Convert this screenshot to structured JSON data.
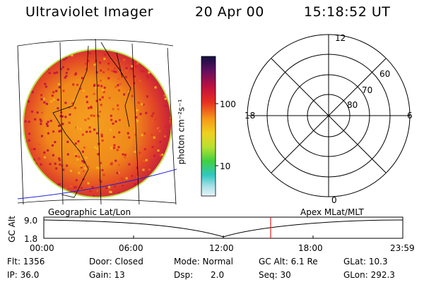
{
  "header": {
    "instrument": "Ultraviolet Imager",
    "date": "20 Apr 00",
    "time": "15:18:52 UT"
  },
  "colorbar": {
    "label": "photon cm⁻²s⁻¹",
    "ticks": [
      "100",
      "10"
    ]
  },
  "polar_plot": {
    "mlt_labels": [
      "12",
      "18",
      "6",
      "0"
    ],
    "lat_labels": [
      "60",
      "70",
      "80"
    ]
  },
  "orbit_panel": {
    "ylabel": "GC Alt",
    "left_title": "Geographic Lat/Lon",
    "right_title": "Apex MLat/MLT",
    "yticks": [
      "9.0",
      "1.8"
    ],
    "xticks": [
      "00:00",
      "06:00",
      "12:00",
      "18:00",
      "23:59"
    ]
  },
  "info": {
    "flt": "Flt: 1356",
    "door": "Door: Closed",
    "mode": "Mode: Normal",
    "gc_alt": "GC Alt: 6.1 Re",
    "glat": "GLat:  10.3",
    "ip": "IP: 36.0",
    "gain": "Gain: 13",
    "dsp_label": "Dsp:",
    "dsp_value": "2.0",
    "seq": "Seq: 30",
    "glon": "GLon: 292.3"
  }
}
